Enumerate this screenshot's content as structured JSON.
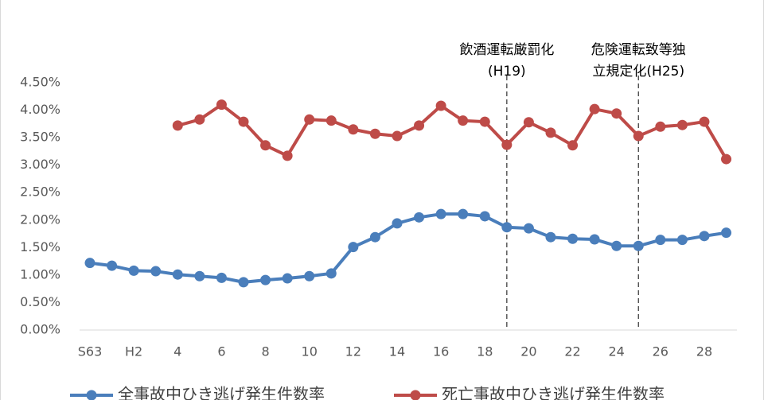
{
  "chart_data": {
    "type": "line",
    "categories": [
      "S63",
      null,
      "H2",
      null,
      "4",
      null,
      "6",
      null,
      "8",
      null,
      "10",
      null,
      "12",
      null,
      "14",
      null,
      "16",
      null,
      "18",
      null,
      "20",
      null,
      "22",
      null,
      "24",
      null,
      "26",
      null,
      "28",
      null
    ],
    "series": [
      {
        "name": "全事故中ひき逃げ発生件数率",
        "color": "#4a7ebb",
        "values": [
          1.22,
          1.17,
          1.08,
          1.07,
          1.01,
          0.98,
          0.95,
          0.87,
          0.91,
          0.94,
          0.98,
          1.03,
          1.51,
          1.69,
          1.94,
          2.05,
          2.11,
          2.11,
          2.07,
          1.87,
          1.85,
          1.69,
          1.66,
          1.65,
          1.53,
          1.53,
          1.64,
          1.64,
          1.71,
          1.77
        ]
      },
      {
        "name": "死亡事故中ひき逃げ発生件数率",
        "color": "#be4b48",
        "values": [
          null,
          null,
          null,
          null,
          3.72,
          3.83,
          4.1,
          3.79,
          3.36,
          3.17,
          3.83,
          3.81,
          3.65,
          3.57,
          3.53,
          3.72,
          4.08,
          3.81,
          3.79,
          3.37,
          3.78,
          3.59,
          3.36,
          4.02,
          3.94,
          3.53,
          3.7,
          3.73,
          3.79,
          3.11
        ]
      }
    ],
    "ylim": [
      0,
      4.5
    ],
    "yticks": [
      {
        "value": 0,
        "label": "0.00%"
      },
      {
        "value": 0.5,
        "label": "0.50%"
      },
      {
        "value": 1,
        "label": "1.00%"
      },
      {
        "value": 1.5,
        "label": "1.50%"
      },
      {
        "value": 2,
        "label": "2.00%"
      },
      {
        "value": 2.5,
        "label": "2.50%"
      },
      {
        "value": 3,
        "label": "3.00%"
      },
      {
        "value": 3.5,
        "label": "3.50%"
      },
      {
        "value": 4,
        "label": "4.00%"
      },
      {
        "value": 4.5,
        "label": "4.50%"
      }
    ],
    "reference_lines": [
      {
        "index": 19,
        "text": [
          "飲酒運転厳罰化",
          "(H19)"
        ]
      },
      {
        "index": 25,
        "text": [
          "危険運転致等独",
          "立規定化(H25)"
        ]
      }
    ],
    "legend": "bottom"
  }
}
